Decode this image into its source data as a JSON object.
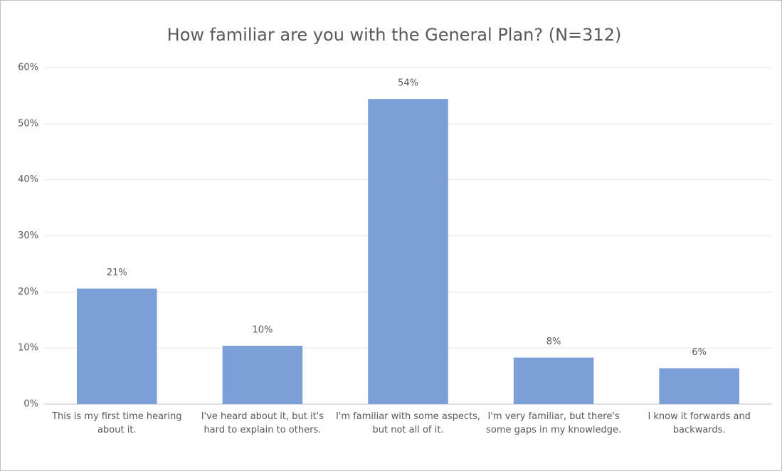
{
  "chart_data": {
    "type": "bar",
    "title": "How familiar are you with the General Plan? (N=312)",
    "categories": [
      "This is my first time hearing about it.",
      "I've heard about it, but it's hard to explain to others.",
      "I'm familiar with some aspects, but not all of it.",
      "I'm very familiar, but there's some gaps in my knowledge.",
      "I know it forwards and backwards."
    ],
    "values": [
      20.6,
      10.4,
      54.4,
      8.3,
      6.4
    ],
    "value_labels": [
      "21%",
      "10%",
      "54%",
      "8%",
      "6%"
    ],
    "color": "#7b9fd6",
    "ylim": [
      0,
      60
    ],
    "yticks": [
      {
        "value": 0,
        "label": "0%"
      },
      {
        "value": 10,
        "label": "10%"
      },
      {
        "value": 20,
        "label": "20%"
      },
      {
        "value": 30,
        "label": "30%"
      },
      {
        "value": 40,
        "label": "40%"
      },
      {
        "value": 50,
        "label": "50%"
      },
      {
        "value": 60,
        "label": "60%"
      }
    ],
    "grid": true
  }
}
